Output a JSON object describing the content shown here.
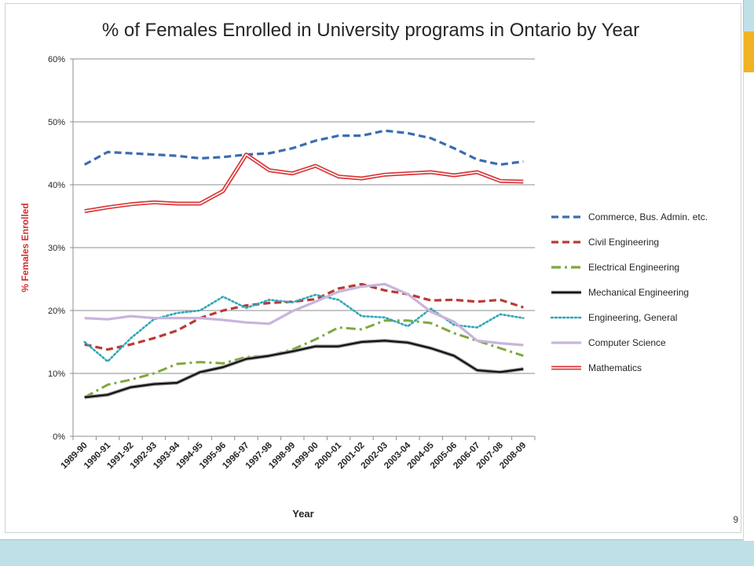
{
  "slide": {
    "page_number": "9",
    "accent_color": "#f0b323",
    "background_color": "#bfe0e6"
  },
  "chart_data": {
    "type": "line",
    "title": "% of Females Enrolled in University programs in Ontario by Year",
    "xlabel": "Year",
    "ylabel": "% Females Enrolled",
    "ylim": [
      0,
      60
    ],
    "yticks": [
      "0%",
      "10%",
      "20%",
      "30%",
      "40%",
      "50%",
      "60%"
    ],
    "grid": true,
    "legend_position": "right",
    "categories": [
      "1989-90",
      "1990-91",
      "1991-92",
      "1992-93",
      "1993-94",
      "1994-95",
      "1995-96",
      "1996-97",
      "1997-98",
      "1998-99",
      "1999-00",
      "2000-01",
      "2001-02",
      "2002-03",
      "2003-04",
      "2004-05",
      "2005-06",
      "2006-07",
      "2007-08",
      "2008-09"
    ],
    "series": [
      {
        "name": "Commerce, Bus. Admin. etc.",
        "color": "#3a6db0",
        "style": "dashed",
        "values": [
          43.2,
          45.2,
          45.0,
          44.8,
          44.6,
          44.2,
          44.4,
          44.8,
          45.0,
          45.8,
          47.0,
          47.8,
          47.8,
          48.6,
          48.2,
          47.4,
          45.8,
          44.0,
          43.2,
          43.7
        ]
      },
      {
        "name": "Civil Engineering",
        "color": "#b83b35",
        "style": "dashed",
        "values": [
          14.6,
          13.8,
          14.6,
          15.6,
          16.8,
          18.8,
          20.0,
          20.8,
          21.2,
          21.4,
          21.8,
          23.5,
          24.2,
          23.2,
          22.6,
          21.6,
          21.7,
          21.4,
          21.7,
          20.5
        ]
      },
      {
        "name": "Electrical Engineering",
        "color": "#7fa83c",
        "style": "dashdot",
        "values": [
          6.2,
          8.2,
          9.0,
          10.0,
          11.5,
          11.8,
          11.6,
          12.6,
          12.8,
          13.8,
          15.4,
          17.3,
          17.0,
          18.4,
          18.4,
          18.0,
          16.4,
          15.2,
          14.0,
          12.8
        ]
      },
      {
        "name": "Mechanical Engineering",
        "color": "#111111",
        "style": "solid",
        "values": [
          6.2,
          6.6,
          7.8,
          8.3,
          8.5,
          10.2,
          11.0,
          12.3,
          12.8,
          13.5,
          14.3,
          14.3,
          15.0,
          15.2,
          14.9,
          14.0,
          12.8,
          10.5,
          10.2,
          10.7
        ]
      },
      {
        "name": "Engineering, General",
        "color": "#2fa6b8",
        "style": "dotted",
        "values": [
          15.0,
          11.9,
          15.6,
          18.6,
          19.6,
          20.0,
          22.2,
          20.4,
          21.7,
          21.3,
          22.5,
          21.7,
          19.1,
          18.9,
          17.5,
          20.3,
          17.7,
          17.3,
          19.4,
          18.8
        ]
      },
      {
        "name": "Computer Science",
        "color": "#c9b4dc",
        "style": "solid",
        "values": [
          18.8,
          18.6,
          19.1,
          18.8,
          18.8,
          18.8,
          18.5,
          18.1,
          17.9,
          19.9,
          21.4,
          23.0,
          23.8,
          24.2,
          22.6,
          19.8,
          18.2,
          15.2,
          14.8,
          14.5
        ]
      },
      {
        "name": "Mathematics",
        "color": "#d9383a",
        "style": "double",
        "values": [
          35.8,
          36.4,
          36.9,
          37.2,
          37.0,
          37.0,
          39.0,
          44.8,
          42.3,
          41.8,
          43.0,
          41.3,
          41.0,
          41.6,
          41.8,
          42.0,
          41.5,
          42.0,
          40.6,
          40.5
        ]
      }
    ]
  }
}
